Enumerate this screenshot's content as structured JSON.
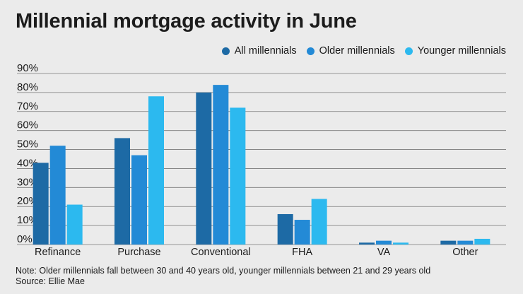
{
  "title": "Millennial mortgage activity in June",
  "note": "Note: Older millennials fall between 30 and 40 years old, younger millennials between 21 and 29 years old",
  "source": "Source: Ellie Mae",
  "colors": {
    "all": "#1d6aa5",
    "older": "#238ad6",
    "younger": "#2cb9ef",
    "grid": "#777777",
    "background": "#ebebeb"
  },
  "chart_data": {
    "type": "bar",
    "categories": [
      "Refinance",
      "Purchase",
      "Conventional",
      "FHA",
      "VA",
      "Other"
    ],
    "series": [
      {
        "name": "All millennials",
        "color": "#1d6aa5",
        "values": [
          43,
          56,
          80,
          16,
          1,
          2
        ]
      },
      {
        "name": "Older millennials",
        "color": "#238ad6",
        "values": [
          52,
          47,
          84,
          13,
          2,
          2
        ]
      },
      {
        "name": "Younger millennials",
        "color": "#2cb9ef",
        "values": [
          21,
          78,
          72,
          24,
          1,
          3
        ]
      }
    ],
    "ylim": [
      0,
      90
    ],
    "yticks": [
      "0%",
      "10%",
      "20%",
      "30%",
      "40%",
      "50%",
      "60%",
      "70%",
      "80%",
      "90%"
    ],
    "grid": true,
    "legend_position": "top-right"
  }
}
